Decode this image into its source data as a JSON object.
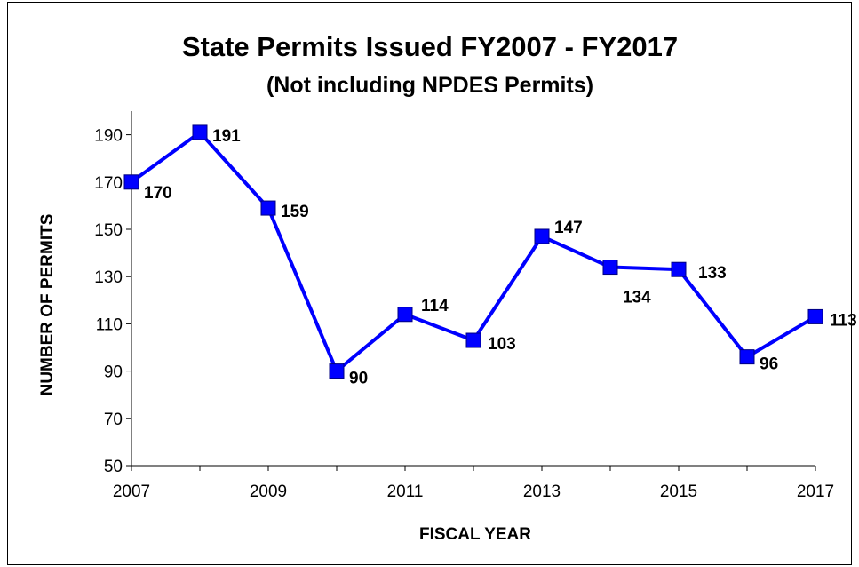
{
  "chart_data": {
    "type": "line",
    "title": "State Permits Issued FY2007 - FY2017",
    "subtitle": "(Not including NPDES Permits)",
    "xlabel": "FISCAL YEAR",
    "ylabel": "NUMBER OF PERMITS",
    "x": [
      2007,
      2008,
      2009,
      2010,
      2011,
      2012,
      2013,
      2014,
      2015,
      2016,
      2017
    ],
    "values": [
      170,
      191,
      159,
      90,
      114,
      103,
      147,
      134,
      133,
      96,
      113
    ],
    "value_labels": [
      "170",
      "191",
      "159",
      "90",
      "114",
      "103",
      "147",
      "134",
      "133",
      "96",
      "113"
    ],
    "xlim": [
      2007,
      2017
    ],
    "ylim": [
      50,
      200
    ],
    "x_ticks": [
      "2007",
      "2009",
      "2011",
      "2013",
      "2015",
      "2017"
    ],
    "y_ticks": [
      "50",
      "70",
      "90",
      "110",
      "130",
      "150",
      "170",
      "190"
    ],
    "grid": false,
    "legend": "none",
    "colors": {
      "line": "#0000FF",
      "marker": "#0000FF",
      "marker_edge": "#000080",
      "axis": "#000000"
    }
  }
}
